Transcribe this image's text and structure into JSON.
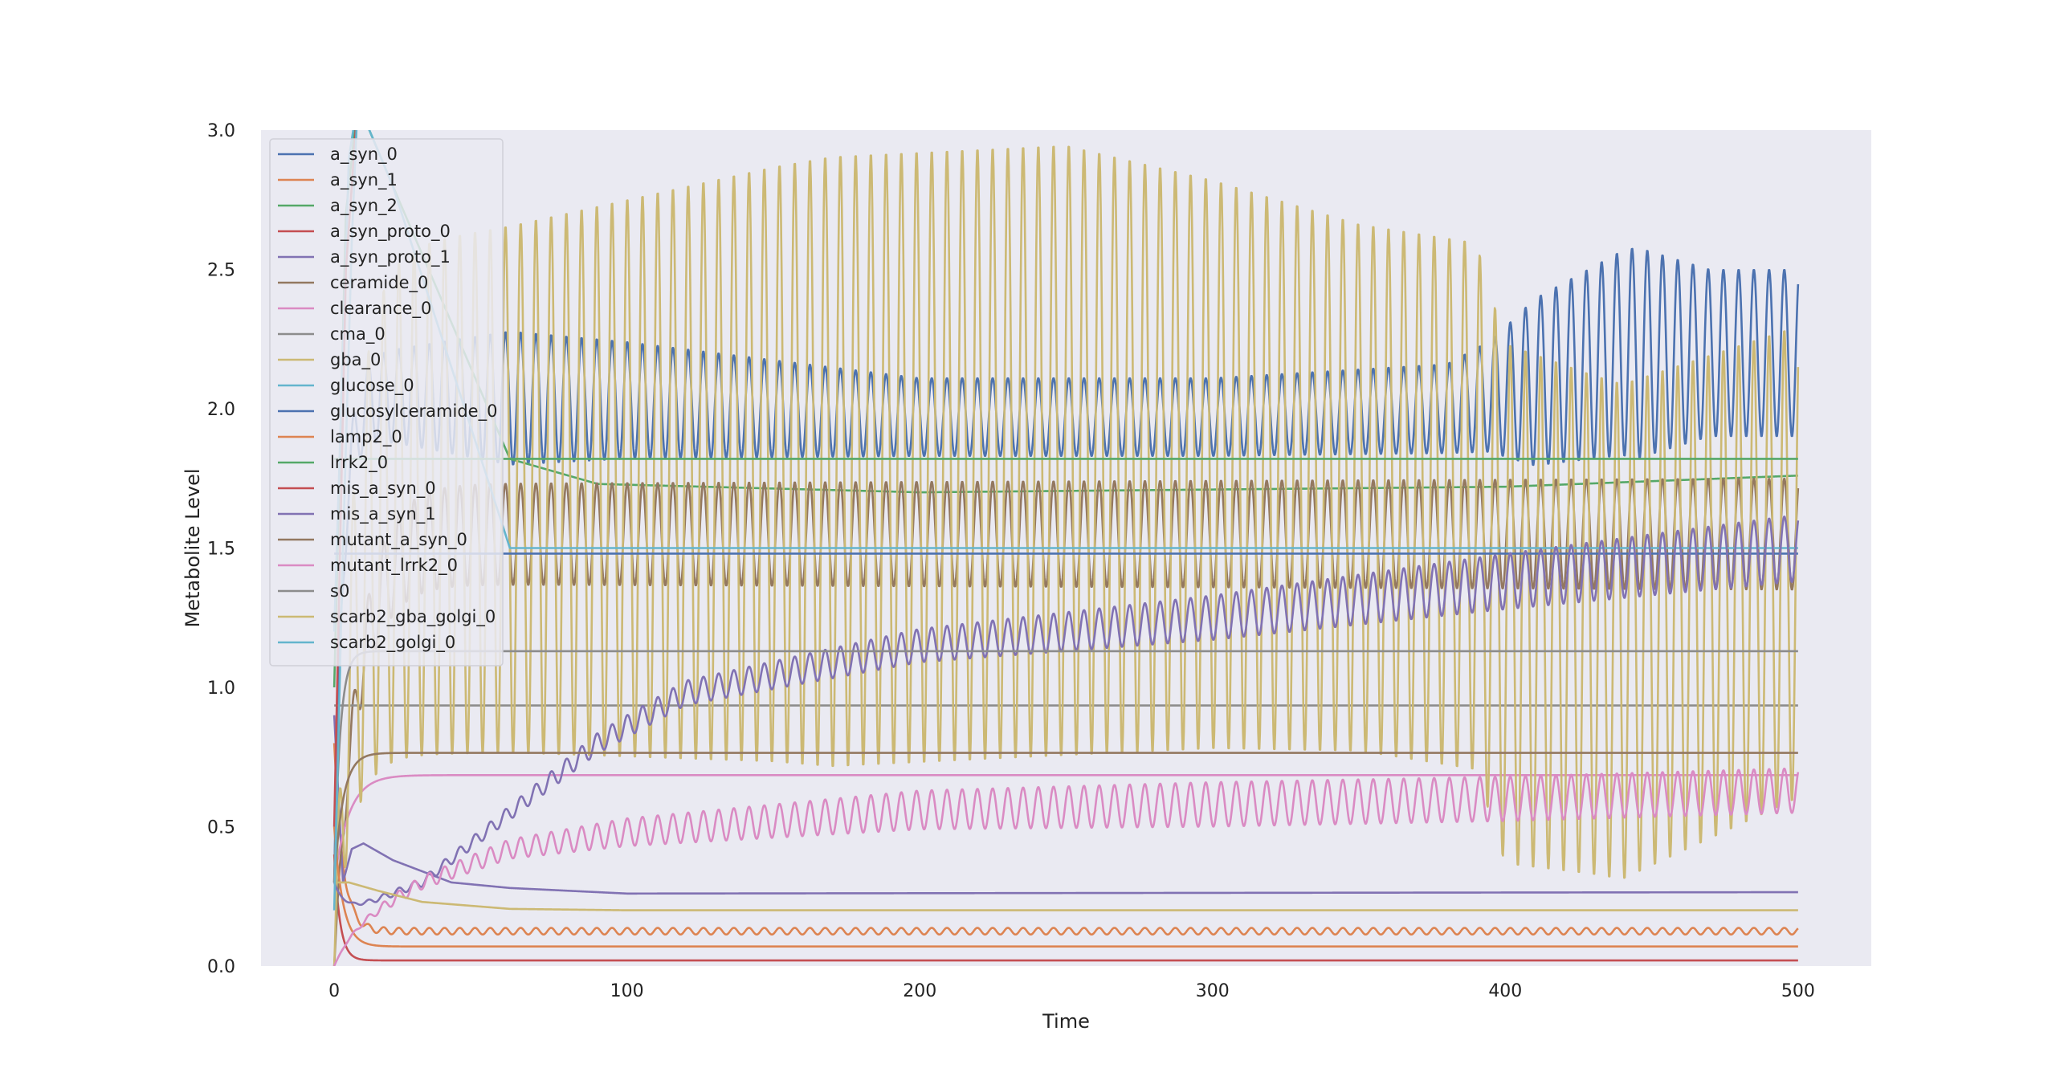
{
  "chart_data": {
    "type": "line",
    "title": "",
    "xlabel": "Time",
    "ylabel": "Metabolite Level",
    "xlim": [
      -25,
      525
    ],
    "ylim": [
      0,
      3.0
    ],
    "x_ticks": [
      0,
      100,
      200,
      300,
      400,
      500
    ],
    "y_ticks": [
      0.0,
      0.5,
      1.0,
      1.5,
      2.0,
      2.5,
      3.0
    ],
    "grid": false,
    "legend_position": "top-left",
    "background_color": "#eaeaf2",
    "series": [
      {
        "name": "a_syn_0",
        "color": "#4c72b0",
        "model": {
          "kind": "osc",
          "start": 0.3,
          "rise": 3,
          "jump": 2.05,
          "amp": 0.22,
          "period": 5.2,
          "ampNodes": [
            [
              0,
              0.13
            ],
            [
              60,
              0.24
            ],
            [
              100,
              0.21
            ],
            [
              200,
              0.14
            ],
            [
              300,
              0.14
            ],
            [
              380,
              0.16
            ],
            [
              395,
              0.2
            ],
            [
              410,
              0.3
            ],
            [
              445,
              0.38
            ],
            [
              470,
              0.3
            ],
            [
              500,
              0.3
            ]
          ],
          "centerNodes": [
            [
              0,
              2.05
            ],
            [
              100,
              2.03
            ],
            [
              200,
              1.97
            ],
            [
              300,
              1.97
            ],
            [
              380,
              2.0
            ],
            [
              400,
              2.06
            ],
            [
              440,
              2.2
            ],
            [
              500,
              2.2
            ]
          ]
        }
      },
      {
        "name": "a_syn_1",
        "color": "#dd8452",
        "model": {
          "kind": "damped",
          "start": 0.8,
          "final": 0.125,
          "tau": 3,
          "osc": 0.012,
          "period": 5.2
        }
      },
      {
        "name": "a_syn_2",
        "color": "#55a868",
        "model": {
          "kind": "nodes",
          "nodes": [
            [
              0,
              1.0
            ],
            [
              4,
              2.7
            ],
            [
              8,
              3.1
            ],
            [
              20,
              2.8
            ],
            [
              60,
              1.82
            ],
            [
              90,
              1.73
            ],
            [
              200,
              1.7
            ],
            [
              300,
              1.71
            ],
            [
              400,
              1.72
            ],
            [
              500,
              1.76
            ]
          ]
        }
      },
      {
        "name": "a_syn_proto_0",
        "color": "#c44e52",
        "model": {
          "kind": "decay",
          "start": 0.4,
          "final": 0.02,
          "tau": 2
        }
      },
      {
        "name": "a_syn_proto_1",
        "color": "#8172b3",
        "model": {
          "kind": "nodes",
          "nodes": [
            [
              0,
              0.9
            ],
            [
              3,
              0.3
            ],
            [
              6,
              0.42
            ],
            [
              10,
              0.44
            ],
            [
              20,
              0.38
            ],
            [
              40,
              0.3
            ],
            [
              60,
              0.28
            ],
            [
              100,
              0.26
            ],
            [
              500,
              0.265
            ]
          ]
        }
      },
      {
        "name": "ceramide_0",
        "color": "#937860",
        "model": {
          "kind": "osc",
          "start": 0.0,
          "rise": 8,
          "jump": 1.55,
          "amp": 0.19,
          "period": 5.2,
          "ampNodes": [
            [
              0,
              0.18
            ],
            [
              500,
              0.2
            ]
          ],
          "centerNodes": [
            [
              0,
              1.55
            ],
            [
              500,
              1.55
            ]
          ]
        }
      },
      {
        "name": "clearance_0",
        "color": "#da8bc3",
        "model": {
          "kind": "rise",
          "start": 0.3,
          "final": 0.685,
          "tau": 5
        }
      },
      {
        "name": "cma_0",
        "color": "#8c8c8c",
        "model": {
          "kind": "constant",
          "value": 0.935
        }
      },
      {
        "name": "gba_0",
        "color": "#ccb974",
        "model": {
          "kind": "osc",
          "start": 0.0,
          "rise": 6,
          "jump": 1.6,
          "amp": 1.05,
          "period": 5.2,
          "ampNodes": [
            [
              0,
              0.9
            ],
            [
              60,
              0.95
            ],
            [
              170,
              1.1
            ],
            [
              250,
              1.1
            ],
            [
              350,
              0.95
            ],
            [
              390,
              0.95
            ],
            [
              430,
              0.9
            ],
            [
              500,
              0.85
            ]
          ],
          "centerNodes": [
            [
              0,
              1.65
            ],
            [
              150,
              1.8
            ],
            [
              250,
              1.85
            ],
            [
              300,
              1.8
            ],
            [
              390,
              1.65
            ],
            [
              400,
              1.3
            ],
            [
              440,
              1.2
            ],
            [
              500,
              1.45
            ]
          ]
        }
      },
      {
        "name": "glucose_0",
        "color": "#64b5cd",
        "model": {
          "kind": "nodes",
          "nodes": [
            [
              0,
              1.2
            ],
            [
              5,
              2.9
            ],
            [
              8,
              3.1
            ],
            [
              20,
              2.8
            ],
            [
              60,
              1.5
            ],
            [
              500,
              1.5
            ]
          ]
        }
      },
      {
        "name": "glucosylceramide_0",
        "color": "#4c72b0",
        "model": {
          "kind": "constant",
          "value": 1.48
        }
      },
      {
        "name": "lamp2_0",
        "color": "#dd8452",
        "model": {
          "kind": "decay",
          "start": 0.5,
          "final": 0.07,
          "tau": 3
        }
      },
      {
        "name": "lrrk2_0",
        "color": "#55a868",
        "model": {
          "kind": "constant",
          "value": 1.82
        }
      },
      {
        "name": "mis_a_syn_0",
        "color": "#c44e52",
        "model": {
          "kind": "nodes",
          "nodes": [
            [
              0,
              0.5
            ],
            [
              4,
              2.5
            ],
            [
              8,
              3.1
            ],
            [
              500,
              3.1
            ]
          ]
        }
      },
      {
        "name": "mis_a_syn_1",
        "color": "#8172b3",
        "model": {
          "kind": "osc",
          "start": 0.3,
          "rise": 4,
          "jump": 0.18,
          "amp": 0.02,
          "period": 5.2,
          "ampNodes": [
            [
              0,
              0.0
            ],
            [
              15,
              0.01
            ],
            [
              100,
              0.04
            ],
            [
              200,
              0.06
            ],
            [
              300,
              0.08
            ],
            [
              400,
              0.1
            ],
            [
              500,
              0.12
            ]
          ],
          "centerNodes": [
            [
              0,
              0.18
            ],
            [
              30,
              0.3
            ],
            [
              60,
              0.55
            ],
            [
              90,
              0.8
            ],
            [
              120,
              0.98
            ],
            [
              200,
              1.15
            ],
            [
              300,
              1.25
            ],
            [
              400,
              1.38
            ],
            [
              500,
              1.5
            ]
          ]
        }
      },
      {
        "name": "mutant_a_syn_0",
        "color": "#937860",
        "model": {
          "kind": "rise",
          "start": 0.3,
          "final": 0.765,
          "tau": 3
        }
      },
      {
        "name": "mutant_lrrk2_0",
        "color": "#da8bc3",
        "model": {
          "kind": "osc",
          "start": 0.0,
          "rise": 5,
          "jump": 0.12,
          "amp": 0.02,
          "period": 5.2,
          "ampNodes": [
            [
              0,
              0.0
            ],
            [
              20,
              0.02
            ],
            [
              100,
              0.05
            ],
            [
              200,
              0.07
            ],
            [
              300,
              0.08
            ],
            [
              400,
              0.08
            ],
            [
              500,
              0.08
            ]
          ],
          "centerNodes": [
            [
              0,
              0.12
            ],
            [
              30,
              0.3
            ],
            [
              60,
              0.42
            ],
            [
              100,
              0.48
            ],
            [
              200,
              0.56
            ],
            [
              300,
              0.58
            ],
            [
              400,
              0.6
            ],
            [
              500,
              0.63
            ]
          ]
        }
      },
      {
        "name": "s0",
        "color": "#8c8c8c",
        "model": {
          "kind": "rise",
          "start": 0.3,
          "final": 1.13,
          "tau": 2
        }
      },
      {
        "name": "scarb2_gba_golgi_0",
        "color": "#ccb974",
        "model": {
          "kind": "nodes",
          "nodes": [
            [
              0,
              0.3
            ],
            [
              5,
              0.3
            ],
            [
              15,
              0.27
            ],
            [
              30,
              0.23
            ],
            [
              60,
              0.205
            ],
            [
              100,
              0.2
            ],
            [
              500,
              0.2
            ]
          ]
        }
      },
      {
        "name": "scarb2_golgi_0",
        "color": "#64b5cd",
        "model": {
          "kind": "nodes",
          "nodes": [
            [
              0,
              0.2
            ],
            [
              3,
              1.5
            ],
            [
              6,
              2.6
            ],
            [
              8,
              3.1
            ],
            [
              500,
              3.1
            ]
          ]
        }
      }
    ]
  }
}
